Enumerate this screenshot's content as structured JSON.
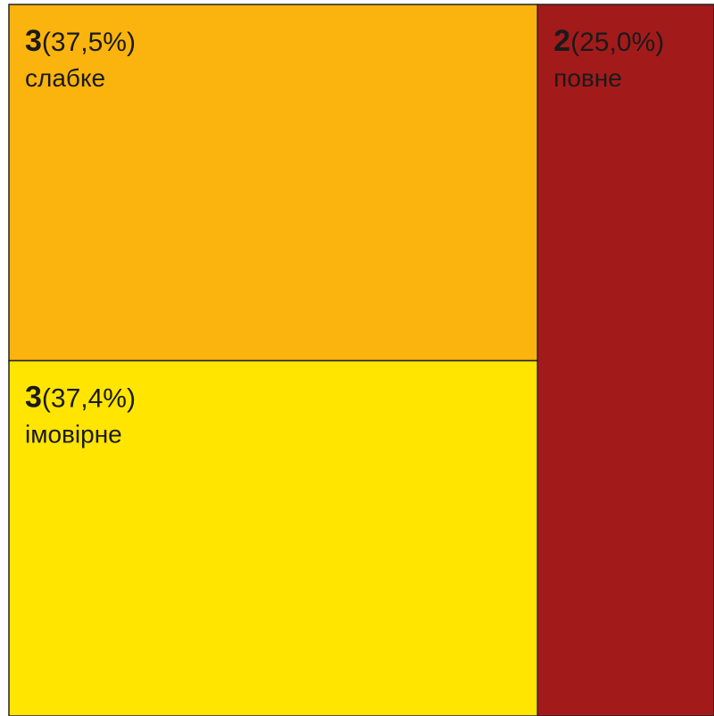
{
  "chart_data": {
    "type": "treemap",
    "categories": [
      "слабке",
      "імовірне",
      "повне"
    ],
    "values": [
      3,
      3,
      2
    ],
    "shares": [
      37.5,
      37.4,
      25.0
    ],
    "share_labels": [
      "(37,5%)",
      "(37,4%)",
      "(25,0%)"
    ],
    "colors": [
      "#fbb40d",
      "#ffe500",
      "#a31a1a"
    ]
  }
}
